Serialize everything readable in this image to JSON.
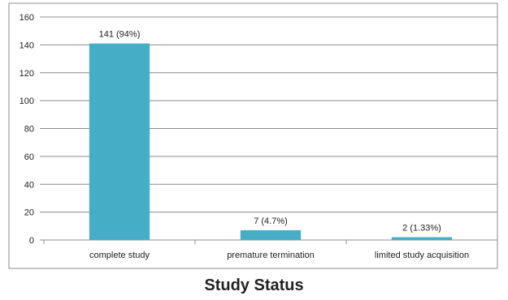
{
  "chart_data": {
    "type": "bar",
    "title": "Study Status",
    "xlabel": "",
    "ylabel": "",
    "categories": [
      "complete study",
      "premature termination",
      "limited study acquisition"
    ],
    "values": [
      141,
      7,
      2
    ],
    "data_labels": [
      "141 (94%)",
      "7 (4.7%)",
      "2 (1.33%)"
    ],
    "ylim": [
      0,
      160
    ],
    "yticks": [
      0,
      20,
      40,
      60,
      80,
      100,
      120,
      140,
      160
    ],
    "grid": true,
    "legend": "none",
    "bar_color": "#45aec6",
    "grid_color": "#8c8c8c",
    "frame_color": "#8c8c8c"
  }
}
